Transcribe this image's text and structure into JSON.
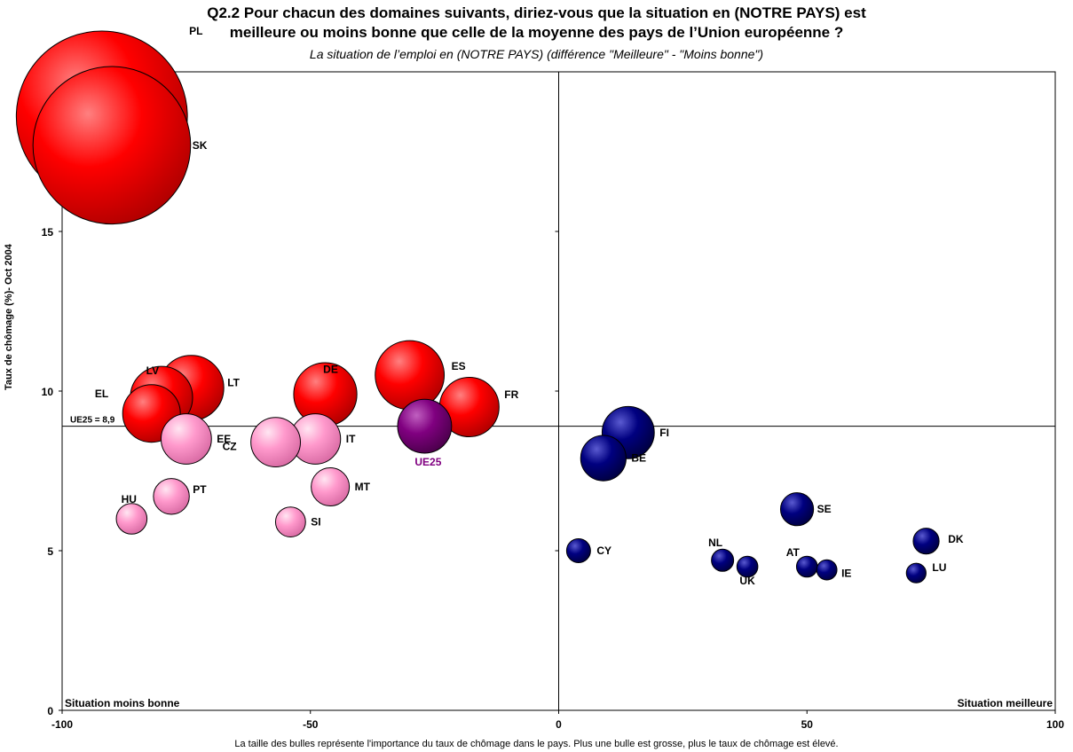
{
  "chart_data": {
    "type": "scatter",
    "title": "Q2.2 Pour chacun des domaines suivants, diriez-vous que la situation en (NOTRE PAYS) est",
    "title_line2": "meilleure ou moins bonne que celle de la moyenne des pays de l’Union européenne ?",
    "subtitle": "La situation de l’emploi en (NOTRE PAYS) (différence \"Meilleure\" - \"Moins bonne\")",
    "ylabel": "Taux de chômage  (%)- Oct 2004",
    "footnote": "La taille des bulles représente l'importance du taux de chômage dans le pays. Plus une bulle est grosse, plus le taux de chômage est élevé.",
    "xlim": [
      -100,
      100
    ],
    "ylim": [
      0,
      20
    ],
    "xticks": [
      "-100",
      "-50",
      "0",
      "50",
      "100"
    ],
    "yticks": [
      "0",
      "5",
      "10",
      "15",
      "20"
    ],
    "reference_line": {
      "value": 8.9,
      "label": "UE25 = 8,9"
    },
    "left_corner_label": "Situation moins bonne",
    "right_corner_label": "Situation meilleure",
    "colors": {
      "high": "#ff0000",
      "mid": "#ff99cc",
      "low": "#000080",
      "eu": "#800080"
    },
    "points": [
      {
        "label": "PL",
        "x": -92,
        "y": 18.6,
        "group": "high"
      },
      {
        "label": "SK",
        "x": -90,
        "y": 17.7,
        "group": "high"
      },
      {
        "label": "LT",
        "x": -74,
        "y": 10.1,
        "group": "high"
      },
      {
        "label": "LV",
        "x": -80,
        "y": 9.8,
        "group": "high"
      },
      {
        "label": "EL",
        "x": -82,
        "y": 9.3,
        "group": "high"
      },
      {
        "label": "DE",
        "x": -47,
        "y": 9.9,
        "group": "high"
      },
      {
        "label": "ES",
        "x": -30,
        "y": 10.5,
        "group": "high"
      },
      {
        "label": "FR",
        "x": -18,
        "y": 9.5,
        "group": "high"
      },
      {
        "label": "UE25",
        "x": -27,
        "y": 8.9,
        "group": "eu"
      },
      {
        "label": "EE",
        "x": -75,
        "y": 8.5,
        "group": "mid"
      },
      {
        "label": "CZ",
        "x": -57,
        "y": 8.4,
        "group": "mid"
      },
      {
        "label": "IT",
        "x": -49,
        "y": 8.5,
        "group": "mid"
      },
      {
        "label": "MT",
        "x": -46,
        "y": 7.0,
        "group": "mid"
      },
      {
        "label": "PT",
        "x": -78,
        "y": 6.7,
        "group": "mid"
      },
      {
        "label": "HU",
        "x": -86,
        "y": 6.0,
        "group": "mid"
      },
      {
        "label": "SI",
        "x": -54,
        "y": 5.9,
        "group": "mid"
      },
      {
        "label": "FI",
        "x": 14,
        "y": 8.7,
        "group": "low"
      },
      {
        "label": "BE",
        "x": 9,
        "y": 7.9,
        "group": "low"
      },
      {
        "label": "SE",
        "x": 48,
        "y": 6.3,
        "group": "low"
      },
      {
        "label": "DK",
        "x": 74,
        "y": 5.3,
        "group": "low"
      },
      {
        "label": "CY",
        "x": 4,
        "y": 5.0,
        "group": "low"
      },
      {
        "label": "NL",
        "x": 33,
        "y": 4.7,
        "group": "low"
      },
      {
        "label": "UK",
        "x": 38,
        "y": 4.5,
        "group": "low"
      },
      {
        "label": "AT",
        "x": 50,
        "y": 4.5,
        "group": "low"
      },
      {
        "label": "IE",
        "x": 54,
        "y": 4.4,
        "group": "low"
      },
      {
        "label": "LU",
        "x": 72,
        "y": 4.3,
        "group": "low"
      }
    ]
  }
}
